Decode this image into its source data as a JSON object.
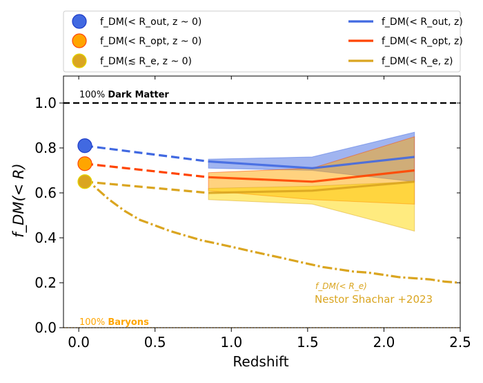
{
  "chart_data": {
    "type": "line",
    "xlabel": "Redshift",
    "ylabel": "f_DM(< R)",
    "xlim": [
      -0.1,
      2.5
    ],
    "ylim": [
      0.0,
      1.12
    ],
    "xticks": [
      0.0,
      0.5,
      1.0,
      1.5,
      2.0,
      2.5
    ],
    "xtick_labels": [
      "0.0",
      "0.5",
      "1.0",
      "1.5",
      "2.0",
      "2.5"
    ],
    "yticks": [
      0.0,
      0.2,
      0.4,
      0.6,
      0.8,
      1.0
    ],
    "ytick_labels": [
      "0.0",
      "0.2",
      "0.4",
      "0.6",
      "0.8",
      "1.0"
    ],
    "reference_lines": [
      {
        "name": "dark-matter",
        "y": 1.0,
        "color": "#000000",
        "style": "dashed",
        "label_prefix": "100% ",
        "label_bold": "Dark Matter",
        "label_color": "#000000"
      },
      {
        "name": "baryons",
        "y": 0.0,
        "color": "#ffa500",
        "style": "dotted",
        "label_prefix": "100% ",
        "label_bold": "Baryons",
        "label_color": "#ffa500"
      }
    ],
    "points": [
      {
        "name": "f_DM(< R_out, z ~ 0)",
        "x": 0.04,
        "y": 0.81,
        "color": "#4169e1",
        "edge": "#1e3cc8"
      },
      {
        "name": "f_DM(< R_opt, z ~ 0)",
        "x": 0.04,
        "y": 0.73,
        "color": "#ffa500",
        "edge": "#ff4500"
      },
      {
        "name": "f_DM(≲ R_e, z ~ 0)",
        "x": 0.04,
        "y": 0.65,
        "color": "#daa520",
        "edge": "#e6d800"
      }
    ],
    "series": [
      {
        "name": "f_DM(< R_out, z)",
        "color": "#4169e1",
        "connector": [
          [
            0.04,
            0.81
          ],
          [
            0.85,
            0.74
          ]
        ],
        "x": [
          0.85,
          1.53,
          2.2
        ],
        "values": [
          0.74,
          0.71,
          0.76
        ],
        "band_lower": [
          0.71,
          0.7,
          0.65
        ],
        "band_upper": [
          0.75,
          0.76,
          0.87
        ]
      },
      {
        "name": "f_DM(< R_opt, z)",
        "color": "#ff4500",
        "connector": [
          [
            0.04,
            0.73
          ],
          [
            0.85,
            0.67
          ]
        ],
        "x": [
          0.85,
          1.53,
          2.2
        ],
        "values": [
          0.67,
          0.65,
          0.7
        ],
        "band_lower": [
          0.61,
          0.57,
          0.55
        ],
        "band_upper": [
          0.69,
          0.71,
          0.85
        ]
      },
      {
        "name": "f_DM(< R_e, z)",
        "color": "#daa520",
        "connector": [
          [
            0.04,
            0.65
          ],
          [
            0.85,
            0.6
          ]
        ],
        "x": [
          0.85,
          1.53,
          2.2
        ],
        "values": [
          0.6,
          0.61,
          0.65
        ],
        "band_lower": [
          0.57,
          0.55,
          0.43
        ],
        "band_upper": [
          0.62,
          0.63,
          0.65
        ]
      }
    ],
    "model_curve": {
      "name": "f_DM(< R_e)",
      "label_line1": "f_DM(< R_e)",
      "label_line2": "Nestor Shachar +2023",
      "color": "#daa520",
      "style": "dashdot",
      "x": [
        0.04,
        0.1,
        0.2,
        0.3,
        0.4,
        0.5,
        0.6,
        0.7,
        0.8,
        0.9,
        1.0,
        1.1,
        1.2,
        1.3,
        1.4,
        1.5,
        1.6,
        1.7,
        1.8,
        1.9,
        2.0,
        2.1,
        2.2,
        2.3,
        2.4,
        2.5
      ],
      "values": [
        0.67,
        0.63,
        0.57,
        0.52,
        0.48,
        0.455,
        0.43,
        0.41,
        0.39,
        0.375,
        0.36,
        0.345,
        0.33,
        0.315,
        0.3,
        0.285,
        0.27,
        0.26,
        0.25,
        0.245,
        0.235,
        0.225,
        0.22,
        0.215,
        0.205,
        0.2
      ]
    },
    "legend": {
      "placement": "top",
      "left_column": [
        "f_DM(< R_out, z ~ 0)",
        "f_DM(< R_opt, z ~ 0)",
        "f_DM(≲ R_e, z ~ 0)"
      ],
      "right_column": [
        "f_DM(< R_out, z)",
        "f_DM(< R_opt, z)",
        "f_DM(< R_e, z)"
      ]
    }
  }
}
